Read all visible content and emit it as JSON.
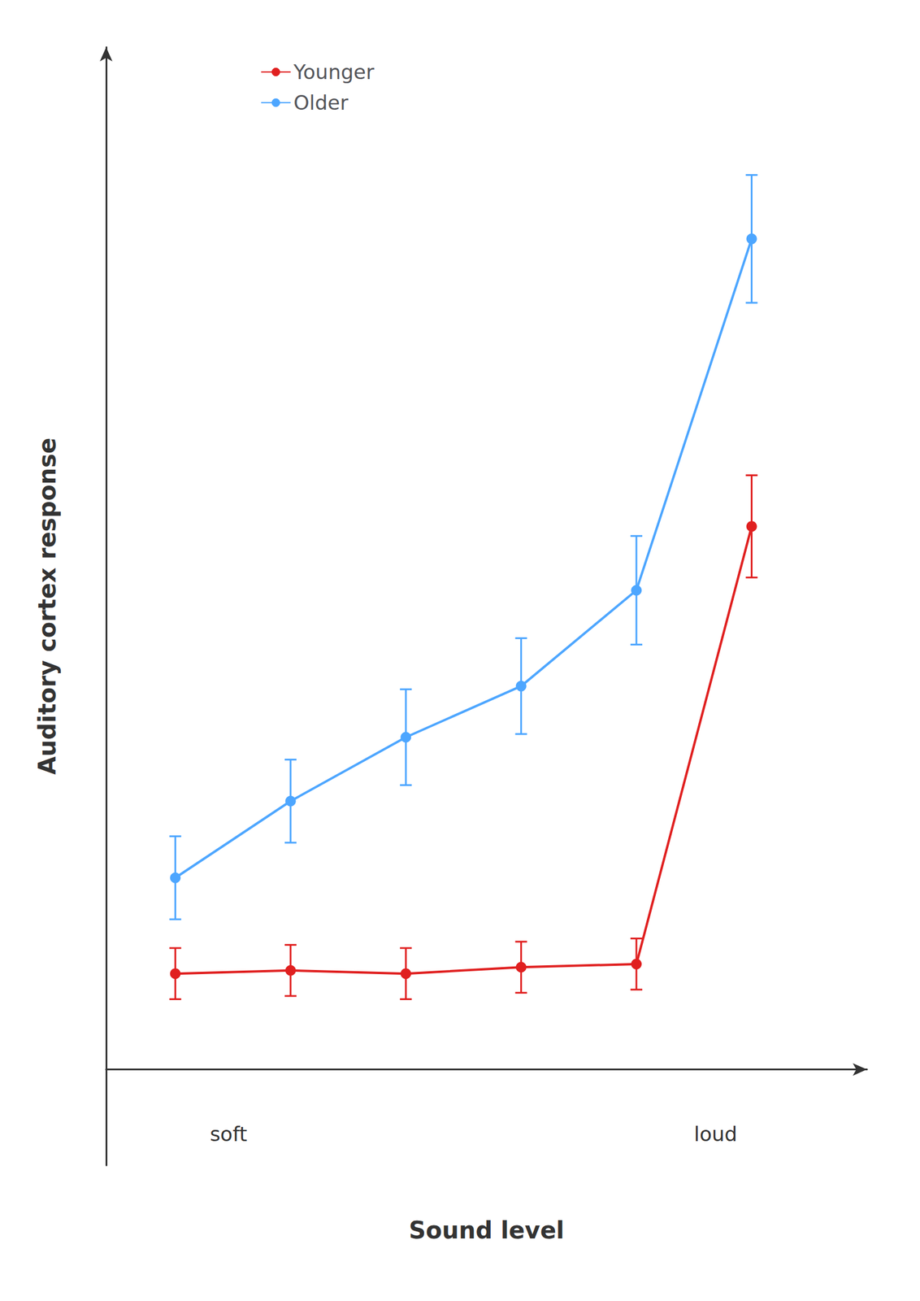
{
  "chart_data": {
    "type": "line",
    "xlabel": "Sound level",
    "ylabel": "Auditory cortex response",
    "series": [
      {
        "name": "Younger",
        "color": "#e02020",
        "marker": "circle",
        "x": [
          1,
          2,
          3,
          4,
          5,
          6
        ],
        "values": [
          1.5,
          1.55,
          1.5,
          1.6,
          1.65,
          8.5
        ],
        "yerr": [
          0.4,
          0.4,
          0.4,
          0.4,
          0.4,
          0.8
        ]
      },
      {
        "name": "Older",
        "color": "#4da6ff",
        "marker": "circle",
        "x": [
          1,
          2,
          3,
          4,
          5,
          6
        ],
        "values": [
          3.0,
          4.2,
          5.2,
          6.0,
          7.5,
          13.0
        ],
        "yerr": [
          0.65,
          0.65,
          0.75,
          0.75,
          0.85,
          1.0
        ]
      }
    ],
    "xlim": [
      0.4,
      7.0
    ],
    "ylim": [
      -1.5,
      16.0
    ],
    "tick_labels": false,
    "grid": false,
    "legend": "upper left",
    "annotations": [
      {
        "text": "soft",
        "x": 1.3,
        "y": -0.85
      },
      {
        "text": "loud",
        "x": 5.5,
        "y": -0.85
      }
    ]
  }
}
